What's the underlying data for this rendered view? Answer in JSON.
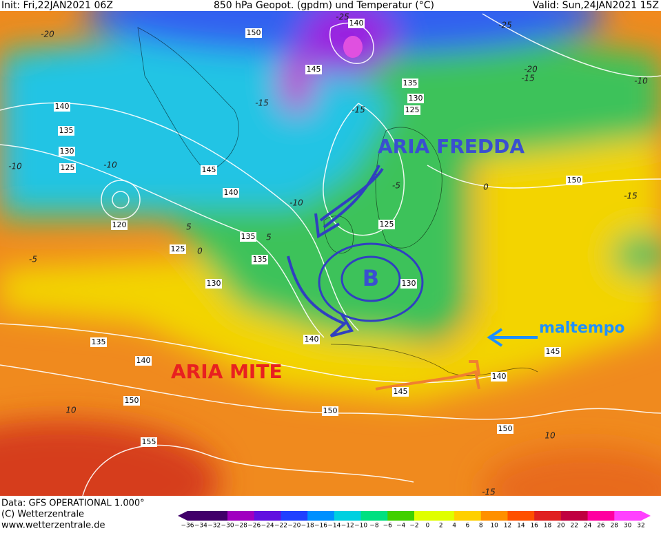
{
  "header": {
    "init": "Init: Fri,22JAN2021 06Z",
    "title": "850 hPa Geopot. (gpdm) und Temperatur (°C)",
    "valid": "Valid: Sun,24JAN2021 15Z"
  },
  "annotations": {
    "cold": "ARIA  FREDDA",
    "low": "B",
    "warm": "ARIA  MITE",
    "storm": "maltempo"
  },
  "contour_labels": [
    "150",
    "140",
    "145",
    "135",
    "130",
    "125",
    "140",
    "135",
    "130",
    "125",
    "145",
    "140",
    "120",
    "125",
    "135",
    "125",
    "135",
    "130",
    "130",
    "140",
    "135",
    "140",
    "150",
    "145",
    "140",
    "145",
    "150",
    "150",
    "150",
    "155"
  ],
  "temperature_labels": [
    "-20",
    "-25",
    "-25",
    "-20",
    "-15",
    "-15",
    "-15",
    "-10",
    "-10",
    "-10",
    "-5",
    "-5",
    "0",
    "0",
    "5",
    "5",
    "-10",
    "-15",
    "10",
    "10",
    "-15"
  ],
  "colorbar": {
    "labels": [
      "−36",
      "−34",
      "−32",
      "−30",
      "−28",
      "−26",
      "−24",
      "−22",
      "−20",
      "−18",
      "−16",
      "−14",
      "−12",
      "−10",
      "−8",
      "−6",
      "−4",
      "−2",
      "0",
      "2",
      "4",
      "6",
      "8",
      "10",
      "12",
      "14",
      "16",
      "18",
      "20",
      "22",
      "24",
      "26",
      "28",
      "30",
      "32"
    ]
  },
  "footer": {
    "data": "Data: GFS OPERATIONAL 1.000°",
    "copyright": "(C) Wetterzentrale",
    "url": "www.wetterzentrale.de"
  }
}
